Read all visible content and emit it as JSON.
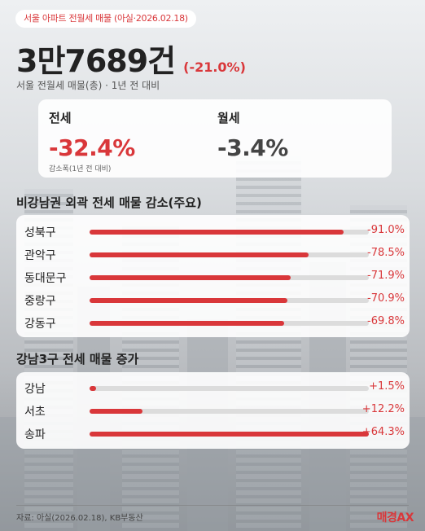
{
  "header": {
    "badge": "서울 아파트 전월세 매물 (아실·2026.02.18)",
    "big_number": "3만7689건",
    "big_change": "(-21.0%)",
    "subtitle": "서울 전월세 매물(총) · 1년 전 대비"
  },
  "stats": {
    "jeonse_label": "전세",
    "jeonse_value": "-32.4%",
    "jeonse_note": "감소폭(1년 전 대비)",
    "wolse_label": "월세",
    "wolse_value": "-3.4%"
  },
  "colors": {
    "accent": "#d9373a",
    "neutral": "#444444"
  },
  "decrease_section": {
    "title": "비강남권 외곽 전세 매물 감소(주요)",
    "rows": [
      {
        "name": "성북구",
        "value": "-91.0%",
        "fill": 0.91
      },
      {
        "name": "관악구",
        "value": "-78.5%",
        "fill": 0.785
      },
      {
        "name": "동대문구",
        "value": "-71.9%",
        "fill": 0.719
      },
      {
        "name": "중랑구",
        "value": "-70.9%",
        "fill": 0.709
      },
      {
        "name": "강동구",
        "value": "-69.8%",
        "fill": 0.698
      }
    ]
  },
  "increase_section": {
    "title": "강남3구 전세 매물 증가",
    "rows": [
      {
        "name": "강남",
        "value": "+1.5%",
        "fill": 0.023
      },
      {
        "name": "서초",
        "value": "+12.2%",
        "fill": 0.19
      },
      {
        "name": "송파",
        "value": "+64.3%",
        "fill": 1.0
      }
    ]
  },
  "footer": {
    "source": "자료: 아실(2026.02.18), KB부동산",
    "logo": "매경AX"
  }
}
